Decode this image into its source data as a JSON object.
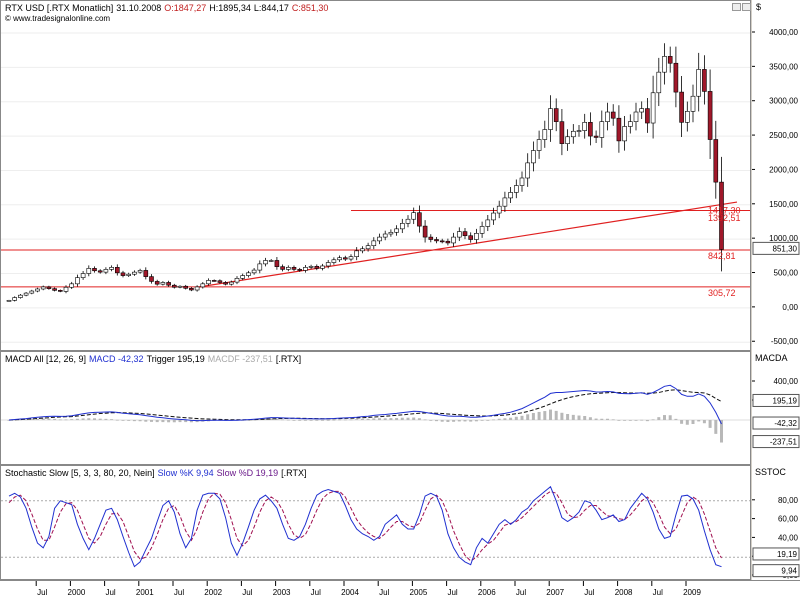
{
  "header": {
    "symbol": "RTX USD [.RTX Monatlich]",
    "date": "31.10.2008",
    "open": "O:1847,27",
    "high": "H:1895,34",
    "low": "L:844,17",
    "close": "C:851,30",
    "source": "© www.tradesignalonline.com"
  },
  "axis_units": {
    "price": "$",
    "macd": "MACDA",
    "stoch": "SSTOC"
  },
  "price_axis_ticks": [
    "4000,00",
    "3500,00",
    "3000,00",
    "2500,00",
    "2000,00",
    "1500,00",
    "1000,00",
    "500,00",
    "0,00",
    "-500,00"
  ],
  "macd_axis_ticks": [
    "400,00",
    "200,00"
  ],
  "stoch_axis_ticks": [
    "80,00",
    "60,00",
    "40,00",
    "20,00",
    "0,00"
  ],
  "x_ticks": [
    "Jul",
    "2000",
    "Jul",
    "2001",
    "Jul",
    "2002",
    "Jul",
    "2003",
    "Jul",
    "2004",
    "Jul",
    "2005",
    "Jul",
    "2006",
    "Jul",
    "2007",
    "Jul",
    "2008",
    "Jul",
    "2009"
  ],
  "levels": {
    "upper": "1392,51",
    "upper2": "1417,30",
    "low": "842,81",
    "bottom": "305,72"
  },
  "price_tag": "851,30",
  "macd_header": {
    "title": "MACD All [12, 26, 9]",
    "macd_label": "MACD -42,32",
    "trigger_label": "Trigger 195,19",
    "macdf_label": "MACDF -237,51",
    "suffix": "[.RTX]"
  },
  "macd_tags": {
    "trigger": "195,19",
    "macd": "-42,32",
    "hist": "-237,51"
  },
  "stoch_header": {
    "title": "Stochastic Slow [5, 3, 3, 80, 20, Nein]",
    "k_label": "Slow %K 9,94",
    "d_label": "Slow %D 19,19",
    "suffix": "[.RTX]"
  },
  "stoch_tags": {
    "d": "19,19",
    "k": "9,94"
  },
  "colors": {
    "up": "#ffffff",
    "down": "#a0182a",
    "line_red": "#e02020",
    "macd": "#2030d0",
    "trigger": "#101010",
    "hist": "#b8b8b8"
  },
  "chart_data": [
    {
      "type": "candlestick",
      "title": "RTX USD [.RTX Monatlich]",
      "x": "months Jan 1999 – Oct 2008",
      "ylim": [
        -700,
        4200
      ],
      "close": [
        110,
        150,
        185,
        215,
        245,
        275,
        305,
        280,
        255,
        240,
        300,
        350,
        440,
        500,
        575,
        540,
        520,
        560,
        590,
        510,
        470,
        490,
        520,
        545,
        455,
        385,
        345,
        370,
        330,
        300,
        315,
        285,
        260,
        305,
        350,
        400,
        395,
        370,
        345,
        375,
        430,
        470,
        510,
        550,
        640,
        690,
        690,
        600,
        560,
        590,
        560,
        545,
        590,
        605,
        575,
        610,
        660,
        700,
        730,
        710,
        745,
        830,
        860,
        905,
        975,
        1030,
        1075,
        1100,
        1150,
        1230,
        1290,
        1385,
        1190,
        1030,
        995,
        975,
        970,
        945,
        1030,
        1110,
        1050,
        995,
        1085,
        1185,
        1280,
        1380,
        1480,
        1600,
        1680,
        1780,
        1890,
        2110,
        2290,
        2450,
        2595,
        2900,
        2710,
        2390,
        2490,
        2570,
        2580,
        2700,
        2500,
        2480,
        2710,
        2850,
        2760,
        2430,
        2640,
        2710,
        2850,
        2900,
        2690,
        3130,
        3430,
        3660,
        3560,
        3140,
        2700,
        2860,
        3080,
        3470,
        3150,
        2450,
        1830,
        851
      ],
      "levels": [
        1417.3,
        1392.51,
        842.81,
        305.72
      ]
    },
    {
      "type": "line",
      "title": "MACD All [12, 26, 9]",
      "series": [
        {
          "name": "MACD",
          "values": [
            0,
            5,
            10,
            15,
            22,
            28,
            35,
            38,
            40,
            38,
            40,
            45,
            55,
            65,
            75,
            80,
            82,
            84,
            85,
            80,
            72,
            66,
            60,
            55,
            46,
            38,
            30,
            24,
            16,
            10,
            6,
            2,
            -4,
            -6,
            -6,
            -4,
            -2,
            -2,
            -4,
            -4,
            -2,
            0,
            4,
            8,
            14,
            20,
            25,
            25,
            22,
            20,
            18,
            15,
            14,
            14,
            12,
            12,
            14,
            16,
            20,
            22,
            25,
            30,
            36,
            40,
            48,
            54,
            58,
            64,
            70,
            78,
            84,
            92,
            90,
            80,
            70,
            60,
            50,
            42,
            40,
            40,
            36,
            30,
            30,
            34,
            42,
            50,
            60,
            70,
            82,
            100,
            120,
            150,
            180,
            210,
            240,
            280,
            290,
            290,
            295,
            300,
            305,
            310,
            305,
            295,
            296,
            300,
            296,
            280,
            278,
            276,
            282,
            286,
            270,
            290,
            320,
            355,
            365,
            330,
            270,
            250,
            250,
            275,
            250,
            180,
            80,
            -42
          ]
        },
        {
          "name": "Trigger",
          "values": [
            0,
            2,
            5,
            8,
            12,
            16,
            20,
            24,
            28,
            32,
            34,
            36,
            42,
            48,
            56,
            62,
            68,
            72,
            76,
            78,
            77,
            75,
            72,
            68,
            64,
            58,
            52,
            46,
            40,
            34,
            28,
            24,
            20,
            16,
            12,
            10,
            8,
            6,
            4,
            2,
            2,
            2,
            2,
            4,
            6,
            8,
            12,
            14,
            16,
            17,
            18,
            18,
            17,
            16,
            15,
            14,
            14,
            14,
            15,
            17,
            19,
            21,
            24,
            27,
            31,
            35,
            40,
            44,
            49,
            54,
            60,
            66,
            71,
            74,
            74,
            72,
            68,
            63,
            59,
            55,
            51,
            47,
            44,
            42,
            42,
            44,
            47,
            52,
            58,
            66,
            76,
            90,
            106,
            125,
            146,
            170,
            194,
            214,
            232,
            246,
            258,
            268,
            276,
            280,
            283,
            287,
            289,
            288,
            286,
            284,
            283,
            284,
            282,
            283,
            290,
            303,
            315,
            318,
            310,
            300,
            292,
            290,
            284,
            263,
            226,
            195
          ]
        },
        {
          "name": "MACDF",
          "values": [
            0,
            3,
            5,
            7,
            10,
            12,
            15,
            14,
            12,
            6,
            6,
            9,
            13,
            17,
            19,
            18,
            14,
            12,
            9,
            2,
            -5,
            -9,
            -12,
            -13,
            -18,
            -20,
            -22,
            -22,
            -24,
            -24,
            -22,
            -22,
            -24,
            -22,
            -18,
            -14,
            -10,
            -8,
            -8,
            -6,
            -4,
            -2,
            2,
            4,
            8,
            12,
            13,
            11,
            6,
            3,
            0,
            -3,
            -3,
            -2,
            -3,
            -2,
            0,
            2,
            5,
            5,
            6,
            9,
            12,
            13,
            17,
            19,
            18,
            20,
            21,
            24,
            24,
            26,
            19,
            6,
            -4,
            -12,
            -18,
            -21,
            -19,
            -15,
            -15,
            -17,
            -14,
            -8,
            0,
            6,
            13,
            18,
            24,
            34,
            44,
            60,
            74,
            85,
            94,
            110,
            96,
            76,
            63,
            54,
            47,
            42,
            29,
            15,
            13,
            13,
            7,
            -8,
            -8,
            -8,
            -1,
            2,
            -12,
            7,
            30,
            52,
            50,
            12,
            -40,
            -50,
            -42,
            -15,
            -34,
            -83,
            -146,
            -237
          ]
        }
      ]
    },
    {
      "type": "line",
      "title": "Stochastic Slow [5, 3, 3, 80, 20, Nein]",
      "ylim": [
        0,
        100
      ],
      "series": [
        {
          "name": "Slow %K",
          "values": [
            85,
            88,
            84,
            72,
            52,
            35,
            30,
            42,
            72,
            80,
            78,
            76,
            55,
            40,
            28,
            40,
            55,
            70,
            72,
            60,
            42,
            25,
            10,
            15,
            28,
            40,
            58,
            75,
            80,
            68,
            45,
            30,
            40,
            70,
            86,
            88,
            88,
            82,
            62,
            35,
            22,
            35,
            52,
            70,
            82,
            86,
            80,
            72,
            55,
            40,
            38,
            42,
            55,
            72,
            86,
            90,
            92,
            90,
            88,
            75,
            60,
            50,
            45,
            42,
            38,
            42,
            55,
            60,
            65,
            55,
            50,
            50,
            65,
            85,
            88,
            85,
            70,
            45,
            30,
            20,
            15,
            12,
            30,
            40,
            35,
            45,
            55,
            60,
            55,
            60,
            68,
            72,
            80,
            85,
            90,
            95,
            80,
            62,
            58,
            62,
            68,
            80,
            78,
            70,
            60,
            62,
            65,
            58,
            60,
            72,
            80,
            88,
            82,
            68,
            50,
            40,
            42,
            65,
            85,
            86,
            82,
            70,
            48,
            28,
            12,
            9.94
          ]
        },
        {
          "name": "Slow %D",
          "values": [
            78,
            84,
            86,
            80,
            66,
            50,
            38,
            38,
            52,
            68,
            77,
            78,
            70,
            55,
            40,
            35,
            42,
            55,
            66,
            67,
            58,
            42,
            26,
            18,
            20,
            30,
            44,
            60,
            72,
            75,
            64,
            48,
            38,
            50,
            68,
            82,
            88,
            87,
            78,
            60,
            40,
            32,
            38,
            52,
            68,
            80,
            84,
            80,
            70,
            55,
            44,
            40,
            44,
            56,
            70,
            82,
            88,
            90,
            90,
            84,
            72,
            60,
            52,
            46,
            42,
            40,
            45,
            52,
            58,
            58,
            54,
            52,
            56,
            70,
            82,
            86,
            80,
            66,
            48,
            34,
            22,
            16,
            20,
            28,
            34,
            38,
            46,
            54,
            56,
            58,
            62,
            68,
            74,
            80,
            86,
            90,
            88,
            78,
            66,
            62,
            63,
            70,
            75,
            75,
            69,
            64,
            63,
            61,
            60,
            65,
            72,
            80,
            84,
            78,
            66,
            52,
            45,
            50,
            64,
            78,
            84,
            80,
            66,
            48,
            30,
            19.19
          ]
        }
      ]
    }
  ]
}
